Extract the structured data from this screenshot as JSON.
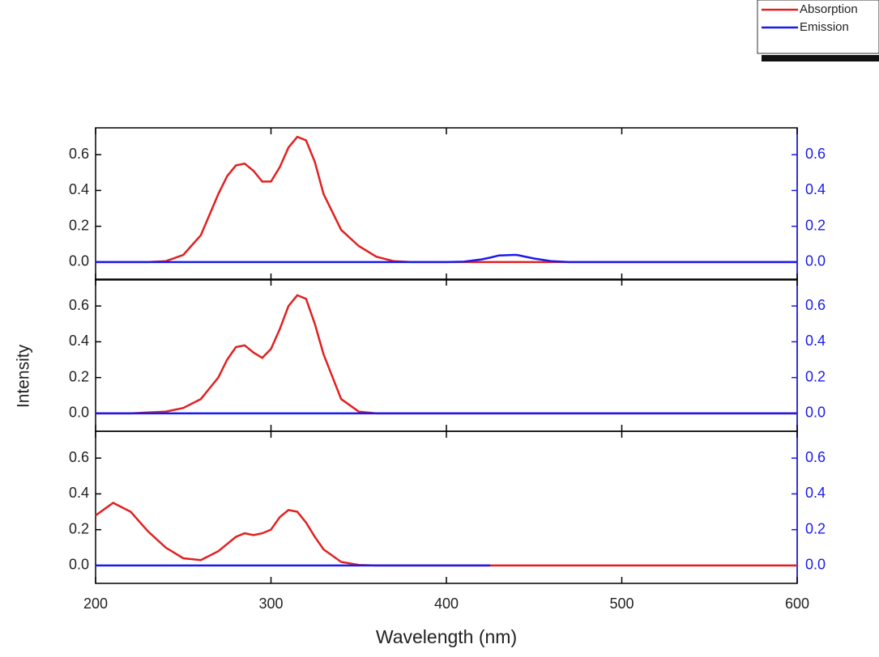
{
  "chart_data": [
    {
      "type": "line",
      "x": [
        200,
        210,
        220,
        230,
        240,
        250,
        260,
        270,
        275,
        280,
        285,
        290,
        295,
        300,
        305,
        310,
        315,
        320,
        325,
        330,
        340,
        350,
        360,
        370,
        380,
        400,
        410,
        420,
        425,
        430,
        440,
        450,
        460,
        470,
        500,
        550,
        600
      ],
      "series": [
        {
          "name": "Absorption",
          "color": "#e02020",
          "values": [
            0,
            0,
            0,
            0,
            0.005,
            0.04,
            0.15,
            0.38,
            0.48,
            0.54,
            0.55,
            0.51,
            0.45,
            0.45,
            0.53,
            0.64,
            0.7,
            0.68,
            0.56,
            0.38,
            0.18,
            0.09,
            0.03,
            0.005,
            0,
            0,
            0,
            0,
            0,
            0,
            0,
            0,
            0,
            0,
            0,
            0,
            0
          ]
        },
        {
          "name": "Emission",
          "color": "#1a1aee",
          "axis": "y2",
          "values": [
            0,
            0,
            0,
            0,
            0,
            0,
            0,
            0,
            0,
            0,
            0,
            0,
            0,
            0,
            0,
            0,
            0,
            0,
            0,
            0,
            0,
            0,
            0,
            0,
            0,
            0,
            0.002,
            0.015,
            0.025,
            0.037,
            0.04,
            0.02,
            0.005,
            0,
            0,
            0,
            0
          ]
        }
      ],
      "xlim": [
        200,
        600
      ],
      "xticks": [
        200,
        300,
        400,
        500,
        600
      ],
      "ylim": [
        -0.1,
        0.75
      ],
      "yticks": [
        {
          "value": 0,
          "label": "0.0"
        },
        0.2,
        0.4,
        0.6
      ],
      "y2lim": [
        -0.1,
        0.75
      ],
      "y2ticks": [
        {
          "value": 0,
          "label": "0.0"
        },
        0.2,
        0.4,
        0.6
      ],
      "legend": "top-right"
    },
    {
      "type": "line",
      "ylabel": "Intensity",
      "x": [
        200,
        210,
        220,
        230,
        240,
        250,
        260,
        270,
        275,
        280,
        285,
        290,
        295,
        300,
        305,
        310,
        315,
        320,
        325,
        330,
        340,
        350,
        360,
        370,
        380,
        400,
        410,
        420,
        425,
        430,
        440,
        450,
        460,
        470,
        500,
        550,
        600
      ],
      "series": [
        {
          "name": "Absorption",
          "color": "#e02020",
          "values": [
            0,
            0,
            0,
            0.005,
            0.01,
            0.03,
            0.08,
            0.2,
            0.3,
            0.37,
            0.38,
            0.34,
            0.31,
            0.36,
            0.47,
            0.6,
            0.66,
            0.64,
            0.5,
            0.33,
            0.08,
            0.01,
            0,
            0,
            0,
            0,
            0,
            0,
            0,
            0,
            0,
            0,
            0,
            0,
            0,
            0,
            0
          ]
        },
        {
          "name": "Emission",
          "color": "#1a1aee",
          "axis": "y2",
          "values": [
            0,
            0,
            0,
            0,
            0,
            0,
            0,
            0,
            0,
            0,
            0,
            0,
            0,
            0,
            0,
            0,
            0,
            0,
            0,
            0,
            0,
            0,
            0,
            0,
            0,
            0,
            0,
            0,
            0,
            0,
            0,
            0,
            0,
            0,
            0,
            0,
            0
          ]
        }
      ],
      "xlim": [
        200,
        600
      ],
      "xticks": [
        200,
        300,
        400,
        500,
        600
      ],
      "ylim": [
        -0.1,
        0.75
      ],
      "yticks": [
        {
          "value": 0,
          "label": "0.0"
        },
        0.2,
        0.4,
        0.6
      ],
      "y2lim": [
        -0.1,
        0.75
      ],
      "y2ticks": [
        {
          "value": 0,
          "label": "0.0"
        },
        0.2,
        0.4,
        0.6
      ]
    },
    {
      "type": "line",
      "xlabel": "Wavelength (nm)",
      "x": [
        200,
        210,
        220,
        230,
        240,
        250,
        260,
        270,
        275,
        280,
        285,
        290,
        295,
        300,
        305,
        310,
        315,
        320,
        325,
        330,
        340,
        350,
        360,
        370,
        380,
        400,
        410,
        420,
        425,
        430,
        440,
        450,
        460,
        470,
        500,
        550,
        600
      ],
      "series": [
        {
          "name": "Absorption",
          "color": "#e02020",
          "values": [
            0.28,
            0.35,
            0.3,
            0.19,
            0.1,
            0.04,
            0.03,
            0.08,
            0.12,
            0.16,
            0.18,
            0.17,
            0.18,
            0.2,
            0.27,
            0.31,
            0.3,
            0.24,
            0.16,
            0.09,
            0.02,
            0.003,
            0,
            0,
            0,
            0,
            0,
            0,
            0,
            0,
            0,
            0,
            0,
            0,
            0,
            0,
            0
          ]
        },
        {
          "name": "Emission",
          "color": "#1a1aee",
          "axis": "y2",
          "values": [
            0,
            0,
            0,
            0,
            0,
            0,
            0,
            0,
            0,
            0,
            0,
            0,
            0,
            0,
            0,
            0,
            0,
            0,
            0,
            0,
            0,
            0,
            0,
            0,
            0,
            0,
            0,
            0,
            0,
            null,
            null,
            null,
            null,
            null,
            null,
            null,
            null
          ]
        }
      ],
      "xlim": [
        200,
        600
      ],
      "xticks": [
        200,
        300,
        400,
        500,
        600
      ],
      "ylim": [
        -0.1,
        0.75
      ],
      "yticks": [
        {
          "value": 0,
          "label": "0.0"
        },
        0.2,
        0.4,
        0.6
      ],
      "y2lim": [
        -0.1,
        0.75
      ],
      "y2ticks": [
        {
          "value": 0,
          "label": "0.0"
        },
        0.2,
        0.4,
        0.6
      ]
    }
  ]
}
